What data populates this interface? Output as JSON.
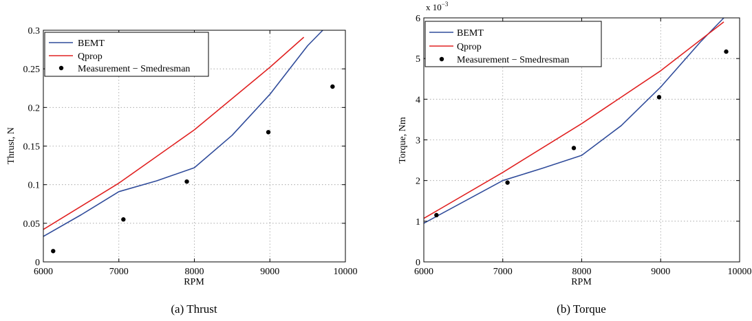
{
  "chart_data": [
    {
      "type": "line",
      "caption": "(a)  Thrust",
      "xlabel": "RPM",
      "ylabel": "Thrust, N",
      "xlim": [
        6000,
        10000
      ],
      "ylim": [
        0,
        0.3
      ],
      "xticks": [
        6000,
        7000,
        8000,
        9000,
        10000
      ],
      "yticks": [
        0,
        0.05,
        0.1,
        0.15,
        0.2,
        0.25,
        0.3
      ],
      "ytick_labels": [
        "0",
        "0.05",
        "0.1",
        "0.15",
        "0.2",
        "0.25",
        "0.3"
      ],
      "exponent_label": "",
      "grid": true,
      "legend_position": "top-left",
      "series": [
        {
          "name": "BEMT",
          "kind": "line",
          "color": "#2f4b9a",
          "x": [
            6000,
            6500,
            7000,
            7500,
            8000,
            8500,
            9000,
            9500,
            9700
          ],
          "y": [
            0.033,
            0.061,
            0.091,
            0.105,
            0.122,
            0.164,
            0.217,
            0.28,
            0.3
          ]
        },
        {
          "name": "Qprop",
          "kind": "line",
          "color": "#e02020",
          "x": [
            6000,
            7000,
            8000,
            9000,
            9450
          ],
          "y": [
            0.042,
            0.102,
            0.171,
            0.252,
            0.291
          ]
        },
        {
          "name": "Measurement − Smedresman",
          "kind": "scatter",
          "color": "#000000",
          "x": [
            6130,
            7060,
            7900,
            8980,
            9830
          ],
          "y": [
            0.014,
            0.055,
            0.104,
            0.168,
            0.227
          ]
        }
      ]
    },
    {
      "type": "line",
      "caption": "(b)  Torque",
      "xlabel": "RPM",
      "ylabel": "Torque, Nm",
      "xlim": [
        6000,
        10000
      ],
      "ylim": [
        0,
        6
      ],
      "xticks": [
        6000,
        7000,
        8000,
        9000,
        10000
      ],
      "yticks": [
        0,
        1,
        2,
        3,
        4,
        5,
        6
      ],
      "ytick_labels": [
        "0",
        "1",
        "2",
        "3",
        "4",
        "5",
        "6"
      ],
      "exponent_label": "x 10",
      "exponent_power": "−3",
      "grid": true,
      "legend_position": "top-left",
      "series": [
        {
          "name": "BEMT",
          "kind": "line",
          "color": "#2f4b9a",
          "x": [
            6000,
            7000,
            7500,
            8000,
            8500,
            9000,
            9500,
            9800
          ],
          "y": [
            0.95,
            2.0,
            2.3,
            2.62,
            3.35,
            4.3,
            5.4,
            6.0
          ]
        },
        {
          "name": "Qprop",
          "kind": "line",
          "color": "#e02020",
          "x": [
            6000,
            7000,
            8000,
            9000,
            9800
          ],
          "y": [
            1.07,
            2.2,
            3.4,
            4.7,
            5.9
          ]
        },
        {
          "name": "Measurement − Smedresman",
          "kind": "scatter",
          "color": "#000000",
          "x": [
            6160,
            7060,
            7900,
            8980,
            9830
          ],
          "y": [
            1.15,
            1.95,
            2.8,
            4.05,
            5.17
          ]
        }
      ]
    }
  ]
}
